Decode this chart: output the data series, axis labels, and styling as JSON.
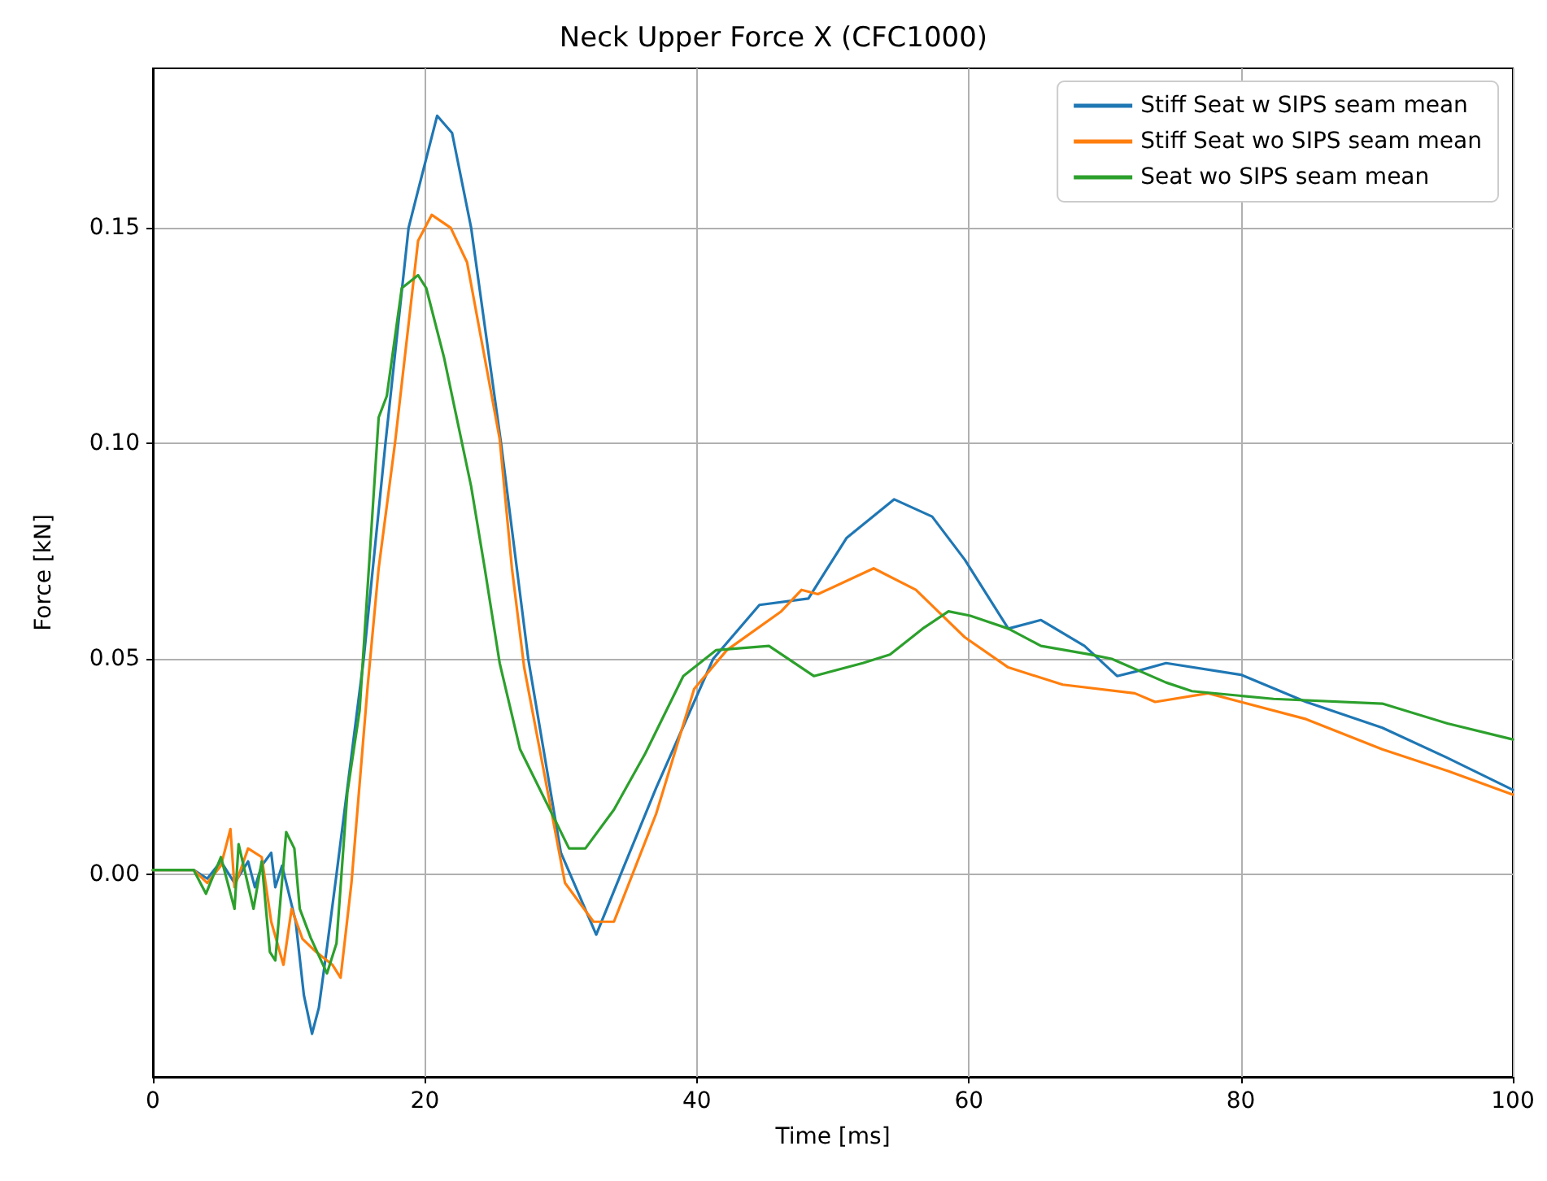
{
  "chart_data": {
    "type": "line",
    "title": "Neck Upper Force X (CFC1000)",
    "xlabel": "Time [ms]",
    "ylabel": "Force [kN]",
    "xlim": [
      0,
      100
    ],
    "ylim": [
      -0.047,
      0.187
    ],
    "xticks": [
      0,
      20,
      40,
      60,
      80,
      100
    ],
    "yticks": [
      {
        "value": 0,
        "label": "0.00"
      },
      {
        "value": 0.05,
        "label": "0.05"
      },
      {
        "value": 0.1,
        "label": "0.10"
      },
      {
        "value": 0.15,
        "label": "0.15"
      }
    ],
    "grid": true,
    "legend": "top right",
    "marker": "none",
    "line_style": "solid",
    "series": [
      {
        "name": "Stiff Seat w SIPS seam mean",
        "color": "#1f77b4",
        "x": [
          0,
          3,
          4,
          5,
          6,
          7,
          7.5,
          8,
          8.7,
          9,
          9.5,
          10.5,
          11.1,
          11.7,
          12.2,
          12.8,
          13.5,
          14.1,
          15.5,
          17.1,
          18.8,
          20.9,
          22,
          23.4,
          25.6,
          27.6,
          30,
          32.6,
          34.4,
          37,
          41.2,
          44.6,
          48.2,
          51,
          54.5,
          57.3,
          59.7,
          62.9,
          65.3,
          68.5,
          70.9,
          72.2,
          74.5,
          80,
          84.8,
          90.4,
          95.2,
          100
        ],
        "values": [
          0.001,
          0.001,
          -0.001,
          0.003,
          -0.002,
          0.003,
          -0.003,
          0.002,
          0.005,
          -0.003,
          0.002,
          -0.011,
          -0.028,
          -0.037,
          -0.031,
          -0.017,
          0,
          0.015,
          0.05,
          0.1,
          0.15,
          0.176,
          0.172,
          0.15,
          0.1,
          0.05,
          0.005,
          -0.014,
          0,
          0.02,
          0.05,
          0.0625,
          0.064,
          0.078,
          0.087,
          0.083,
          0.073,
          0.057,
          0.059,
          0.053,
          0.046,
          0.047,
          0.049,
          0.0463,
          0.04,
          0.034,
          0.027,
          0.0196
        ]
      },
      {
        "name": "Stiff Seat wo SIPS seam mean",
        "color": "#ff7f0e",
        "x": [
          0,
          3,
          4,
          5,
          5.7,
          6,
          7,
          8,
          8.7,
          9.6,
          10.2,
          11,
          12,
          13.2,
          13.8,
          14.6,
          15.8,
          16.6,
          17.8,
          19.5,
          20.5,
          21.9,
          23.1,
          25.5,
          26.4,
          27.3,
          30.3,
          32.4,
          33.9,
          37,
          39.8,
          42.2,
          46.2,
          47.7,
          48.9,
          53,
          56.1,
          59.7,
          62.9,
          66.9,
          72.2,
          73.7,
          77.6,
          80,
          84.8,
          90.4,
          95.2,
          100
        ],
        "values": [
          0.001,
          0.001,
          -0.002,
          0.002,
          0.0105,
          -0.003,
          0.006,
          0.004,
          -0.011,
          -0.021,
          -0.008,
          -0.015,
          -0.018,
          -0.021,
          -0.024,
          -0.002,
          0.044,
          0.071,
          0.1,
          0.147,
          0.153,
          0.15,
          0.142,
          0.101,
          0.071,
          0.048,
          -0.002,
          -0.011,
          -0.011,
          0.014,
          0.043,
          0.052,
          0.061,
          0.066,
          0.065,
          0.071,
          0.066,
          0.055,
          0.048,
          0.044,
          0.042,
          0.04,
          0.042,
          0.04,
          0.036,
          0.029,
          0.024,
          0.0185
        ]
      },
      {
        "name": "Seat wo SIPS seam mean",
        "color": "#2ca02c",
        "x": [
          0,
          3,
          3.9,
          5,
          6,
          6.3,
          7.4,
          8,
          8.6,
          9,
          9.8,
          10.4,
          10.8,
          11.6,
          12.8,
          13.5,
          14.3,
          15.2,
          16.6,
          17.2,
          18.3,
          19.5,
          20.1,
          21.4,
          23.4,
          24.4,
          25.5,
          27,
          30.6,
          31.8,
          33.9,
          36.2,
          39,
          41.4,
          45.3,
          48.6,
          52.2,
          54.2,
          56.6,
          58.5,
          60.1,
          62.9,
          65.3,
          68.9,
          70.5,
          74.5,
          76.4,
          82.4,
          90.4,
          95.2,
          100
        ],
        "values": [
          0.001,
          0.001,
          -0.0045,
          0.004,
          -0.008,
          0.007,
          -0.008,
          0.003,
          -0.018,
          -0.02,
          0.0098,
          0.006,
          -0.008,
          -0.0147,
          -0.023,
          -0.016,
          0.019,
          0.038,
          0.106,
          0.111,
          0.136,
          0.139,
          0.136,
          0.12,
          0.09,
          0.071,
          0.049,
          0.029,
          0.006,
          0.006,
          0.015,
          0.028,
          0.046,
          0.052,
          0.053,
          0.046,
          0.049,
          0.051,
          0.057,
          0.061,
          0.06,
          0.057,
          0.053,
          0.051,
          0.05,
          0.0445,
          0.0425,
          0.0407,
          0.0396,
          0.035,
          0.0313
        ]
      }
    ]
  }
}
